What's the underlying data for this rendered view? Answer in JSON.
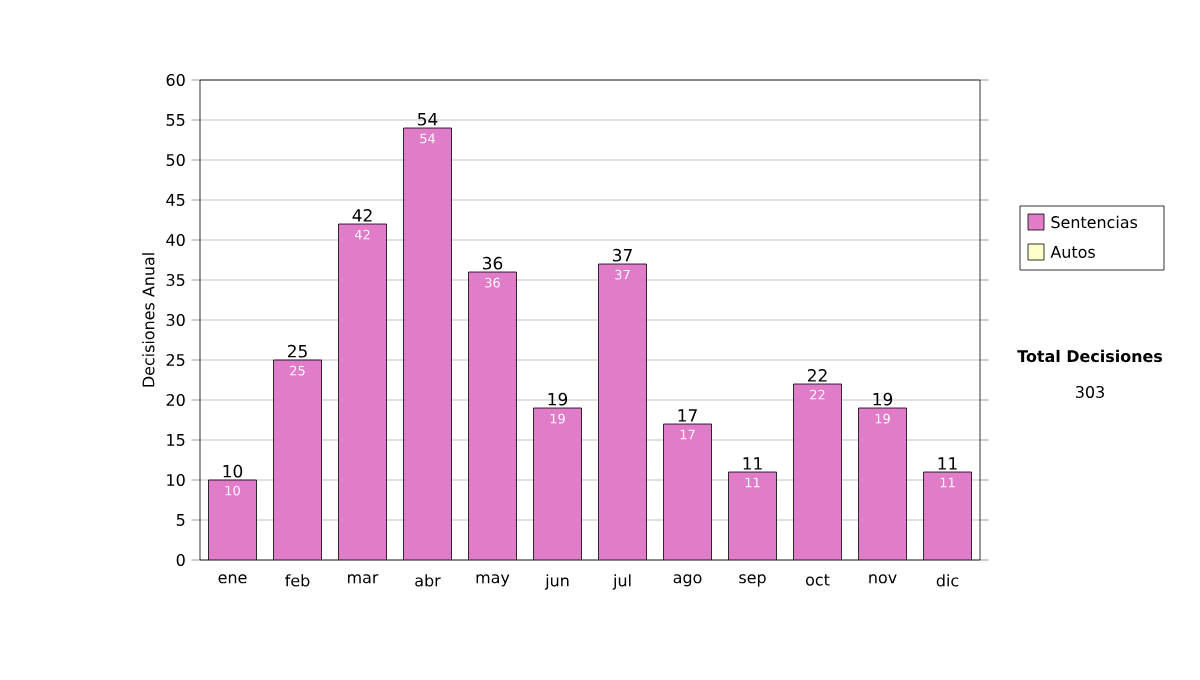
{
  "chart_data": {
    "type": "bar",
    "stacked": true,
    "ylabel": "Decisiones Anual",
    "categories": [
      "ene",
      "feb",
      "mar",
      "abr",
      "may",
      "jun",
      "jul",
      "ago",
      "sep",
      "oct",
      "nov",
      "dic"
    ],
    "series": [
      {
        "name": "Sentencias",
        "color": "#e07cc8",
        "values": [
          10,
          25,
          42,
          54,
          36,
          19,
          37,
          17,
          11,
          22,
          19,
          11
        ],
        "value_labels": [
          "10",
          "25",
          "42",
          "54",
          "36",
          "19",
          "37",
          "17",
          "11",
          "22",
          "19",
          "11"
        ]
      },
      {
        "name": "Autos",
        "color": "#ffffcc",
        "values": [
          0,
          0,
          0,
          0,
          0,
          0,
          0,
          0,
          0,
          0,
          0,
          0
        ]
      }
    ],
    "totals": [
      "10",
      "25",
      "42",
      "54",
      "36",
      "19",
      "37",
      "17",
      "11",
      "22",
      "19",
      "11"
    ],
    "ylim": [
      0,
      60
    ],
    "yticks": [
      0,
      5,
      10,
      15,
      20,
      25,
      30,
      35,
      40,
      45,
      50,
      55,
      60
    ],
    "grid": "y",
    "legend": "right",
    "annotations": [
      "Total Decisiones",
      "303"
    ]
  }
}
